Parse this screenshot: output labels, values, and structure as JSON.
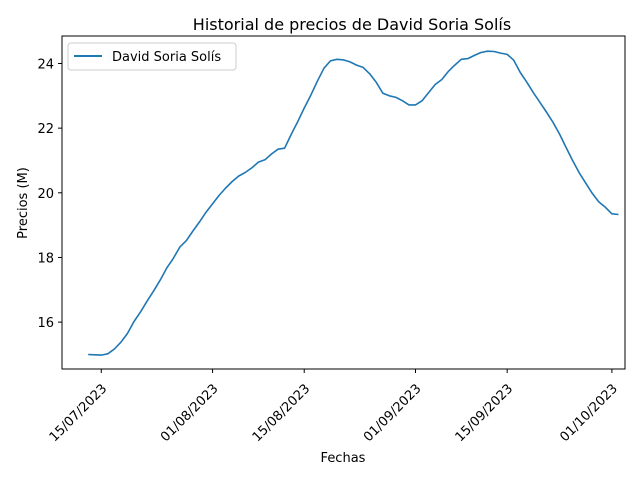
{
  "chart_data": {
    "type": "line",
    "title": "Historial de precios de David Soria Solís",
    "xlabel": "Fechas",
    "ylabel": "Precios (M)",
    "xlim": [
      "2023-07-09",
      "2023-10-03"
    ],
    "ylim": [
      14.55,
      24.85
    ],
    "x_ticks": [
      {
        "date": "2023-07-15",
        "label": "15/07/2023"
      },
      {
        "date": "2023-08-01",
        "label": "01/08/2023"
      },
      {
        "date": "2023-08-15",
        "label": "15/08/2023"
      },
      {
        "date": "2023-09-01",
        "label": "01/09/2023"
      },
      {
        "date": "2023-09-15",
        "label": "15/09/2023"
      },
      {
        "date": "2023-10-01",
        "label": "01/10/2023"
      }
    ],
    "y_ticks": [
      16,
      18,
      20,
      22,
      24
    ],
    "grid": false,
    "legend_position": "upper-left",
    "series": [
      {
        "name": "David Soria Solís",
        "color": "#1f77b4",
        "x": [
          "2023-07-13",
          "2023-07-14",
          "2023-07-15",
          "2023-07-16",
          "2023-07-17",
          "2023-07-18",
          "2023-07-19",
          "2023-07-20",
          "2023-07-21",
          "2023-07-22",
          "2023-07-23",
          "2023-07-24",
          "2023-07-25",
          "2023-07-26",
          "2023-07-27",
          "2023-07-28",
          "2023-07-29",
          "2023-07-30",
          "2023-07-31",
          "2023-08-01",
          "2023-08-02",
          "2023-08-03",
          "2023-08-04",
          "2023-08-05",
          "2023-08-06",
          "2023-08-07",
          "2023-08-08",
          "2023-08-09",
          "2023-08-10",
          "2023-08-11",
          "2023-08-12",
          "2023-08-13",
          "2023-08-14",
          "2023-08-15",
          "2023-08-16",
          "2023-08-17",
          "2023-08-18",
          "2023-08-19",
          "2023-08-20",
          "2023-08-21",
          "2023-08-22",
          "2023-08-23",
          "2023-08-24",
          "2023-08-25",
          "2023-08-26",
          "2023-08-27",
          "2023-08-28",
          "2023-08-29",
          "2023-08-30",
          "2023-08-31",
          "2023-09-01",
          "2023-09-02",
          "2023-09-03",
          "2023-09-04",
          "2023-09-05",
          "2023-09-06",
          "2023-09-07",
          "2023-09-08",
          "2023-09-09",
          "2023-09-10",
          "2023-09-11",
          "2023-09-12",
          "2023-09-13",
          "2023-09-14",
          "2023-09-15",
          "2023-09-16",
          "2023-09-17",
          "2023-09-18",
          "2023-09-19",
          "2023-09-20",
          "2023-09-21",
          "2023-09-22",
          "2023-09-23",
          "2023-09-24",
          "2023-09-25",
          "2023-09-26",
          "2023-09-27",
          "2023-09-28",
          "2023-09-29",
          "2023-09-30",
          "2023-10-01",
          "2023-10-02"
        ],
        "y": [
          15.0,
          14.99,
          14.98,
          15.02,
          15.17,
          15.38,
          15.65,
          16.02,
          16.32,
          16.65,
          16.97,
          17.3,
          17.67,
          17.97,
          18.32,
          18.52,
          18.82,
          19.1,
          19.4,
          19.66,
          19.92,
          20.15,
          20.35,
          20.52,
          20.63,
          20.77,
          20.95,
          21.02,
          21.2,
          21.35,
          21.38,
          21.8,
          22.2,
          22.62,
          23.02,
          23.45,
          23.85,
          24.08,
          24.13,
          24.11,
          24.05,
          23.95,
          23.88,
          23.68,
          23.42,
          23.08,
          23.0,
          22.95,
          22.85,
          22.72,
          22.72,
          22.85,
          23.1,
          23.35,
          23.5,
          23.75,
          23.95,
          24.13,
          24.15,
          24.25,
          24.34,
          24.38,
          24.37,
          24.32,
          24.28,
          24.1,
          23.72,
          23.42,
          23.1,
          22.8,
          22.5,
          22.18,
          21.82,
          21.4,
          21.0,
          20.62,
          20.3,
          19.98,
          19.72,
          19.55,
          19.35,
          19.33
        ]
      }
    ]
  }
}
